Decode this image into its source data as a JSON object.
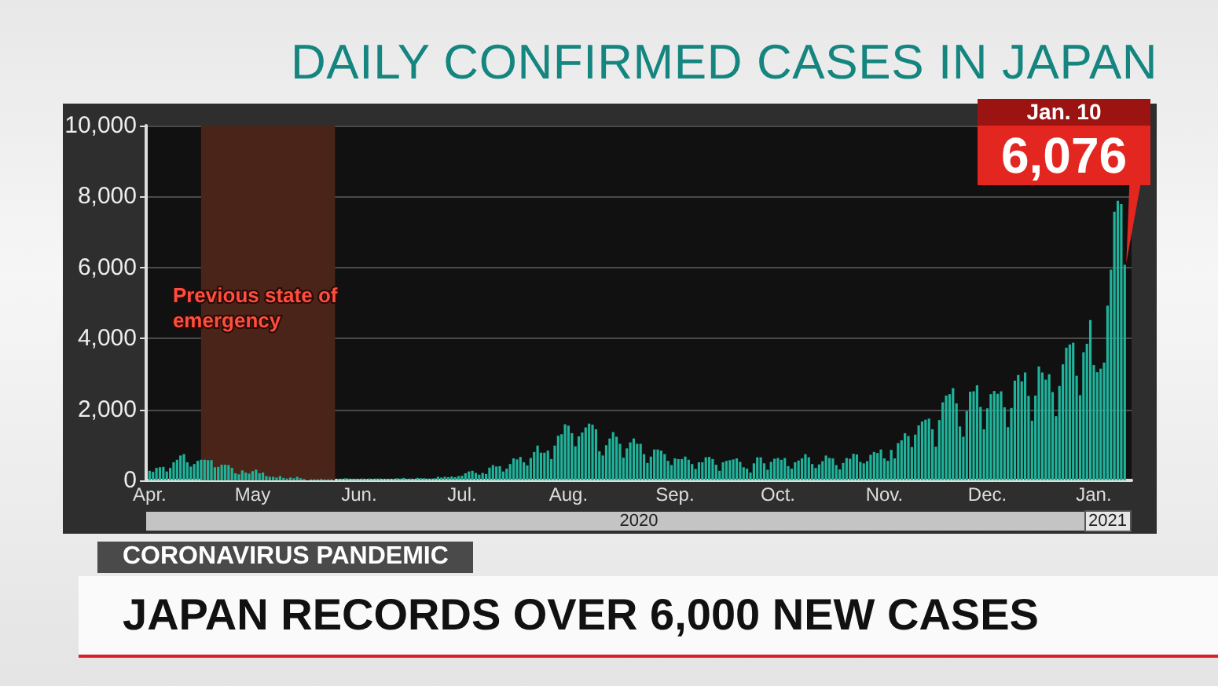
{
  "chart_data": {
    "type": "bar",
    "title": "DAILY CONFIRMED CASES IN JAPAN",
    "subtitle": "CORONAVIRUS PANDEMIC",
    "annotations": [
      "JAPAN RECORDS OVER 6,000 NEW CASES",
      "2020",
      "2021",
      "Jan. 10",
      {
        "text": "6,076",
        "x": "2021-01-10",
        "y": 6076
      }
    ],
    "x": [
      "2020-04-01",
      "2020-04-02",
      "2020-04-03",
      "2020-04-04",
      "2020-04-05",
      "2020-04-06",
      "2020-04-07",
      "2020-04-08",
      "2020-04-09",
      "2020-04-10",
      "2020-04-11",
      "2020-04-12",
      "2020-04-13",
      "2020-04-14",
      "2020-04-15",
      "2020-04-16",
      "2020-04-17",
      "2020-04-18",
      "2020-04-19",
      "2020-04-20",
      "2020-04-21",
      "2020-04-22",
      "2020-04-23",
      "2020-04-24",
      "2020-04-25",
      "2020-04-26",
      "2020-04-27",
      "2020-04-28",
      "2020-04-29",
      "2020-04-30",
      "2020-05-01",
      "2020-05-02",
      "2020-05-03",
      "2020-05-04",
      "2020-05-05",
      "2020-05-06",
      "2020-05-07",
      "2020-05-08",
      "2020-05-09",
      "2020-05-10",
      "2020-05-11",
      "2020-05-12",
      "2020-05-13",
      "2020-05-14",
      "2020-05-15",
      "2020-05-16",
      "2020-05-17",
      "2020-05-18",
      "2020-05-19",
      "2020-05-20",
      "2020-05-21",
      "2020-05-22",
      "2020-05-23",
      "2020-05-24",
      "2020-05-25",
      "2020-05-26",
      "2020-05-27",
      "2020-05-28",
      "2020-05-29",
      "2020-05-30",
      "2020-05-31",
      "2020-06-01",
      "2020-06-02",
      "2020-06-03",
      "2020-06-04",
      "2020-06-05",
      "2020-06-06",
      "2020-06-07",
      "2020-06-08",
      "2020-06-09",
      "2020-06-10",
      "2020-06-11",
      "2020-06-12",
      "2020-06-13",
      "2020-06-14",
      "2020-06-15",
      "2020-06-16",
      "2020-06-17",
      "2020-06-18",
      "2020-06-19",
      "2020-06-20",
      "2020-06-21",
      "2020-06-22",
      "2020-06-23",
      "2020-06-24",
      "2020-06-25",
      "2020-06-26",
      "2020-06-27",
      "2020-06-28",
      "2020-06-29",
      "2020-06-30",
      "2020-07-01",
      "2020-07-02",
      "2020-07-03",
      "2020-07-04",
      "2020-07-05",
      "2020-07-06",
      "2020-07-07",
      "2020-07-08",
      "2020-07-09",
      "2020-07-10",
      "2020-07-11",
      "2020-07-12",
      "2020-07-13",
      "2020-07-14",
      "2020-07-15",
      "2020-07-16",
      "2020-07-17",
      "2020-07-18",
      "2020-07-19",
      "2020-07-20",
      "2020-07-21",
      "2020-07-22",
      "2020-07-23",
      "2020-07-24",
      "2020-07-25",
      "2020-07-26",
      "2020-07-27",
      "2020-07-28",
      "2020-07-29",
      "2020-07-30",
      "2020-07-31",
      "2020-08-01",
      "2020-08-02",
      "2020-08-03",
      "2020-08-04",
      "2020-08-05",
      "2020-08-06",
      "2020-08-07",
      "2020-08-08",
      "2020-08-09",
      "2020-08-10",
      "2020-08-11",
      "2020-08-12",
      "2020-08-13",
      "2020-08-14",
      "2020-08-15",
      "2020-08-16",
      "2020-08-17",
      "2020-08-18",
      "2020-08-19",
      "2020-08-20",
      "2020-08-21",
      "2020-08-22",
      "2020-08-23",
      "2020-08-24",
      "2020-08-25",
      "2020-08-26",
      "2020-08-27",
      "2020-08-28",
      "2020-08-29",
      "2020-08-30",
      "2020-08-31",
      "2020-09-01",
      "2020-09-02",
      "2020-09-03",
      "2020-09-04",
      "2020-09-05",
      "2020-09-06",
      "2020-09-07",
      "2020-09-08",
      "2020-09-09",
      "2020-09-10",
      "2020-09-11",
      "2020-09-12",
      "2020-09-13",
      "2020-09-14",
      "2020-09-15",
      "2020-09-16",
      "2020-09-17",
      "2020-09-18",
      "2020-09-19",
      "2020-09-20",
      "2020-09-21",
      "2020-09-22",
      "2020-09-23",
      "2020-09-24",
      "2020-09-25",
      "2020-09-26",
      "2020-09-27",
      "2020-09-28",
      "2020-09-29",
      "2020-09-30",
      "2020-10-01",
      "2020-10-02",
      "2020-10-03",
      "2020-10-04",
      "2020-10-05",
      "2020-10-06",
      "2020-10-07",
      "2020-10-08",
      "2020-10-09",
      "2020-10-10",
      "2020-10-11",
      "2020-10-12",
      "2020-10-13",
      "2020-10-14",
      "2020-10-15",
      "2020-10-16",
      "2020-10-17",
      "2020-10-18",
      "2020-10-19",
      "2020-10-20",
      "2020-10-21",
      "2020-10-22",
      "2020-10-23",
      "2020-10-24",
      "2020-10-25",
      "2020-10-26",
      "2020-10-27",
      "2020-10-28",
      "2020-10-29",
      "2020-10-30",
      "2020-10-31",
      "2020-11-01",
      "2020-11-02",
      "2020-11-03",
      "2020-11-04",
      "2020-11-05",
      "2020-11-06",
      "2020-11-07",
      "2020-11-08",
      "2020-11-09",
      "2020-11-10",
      "2020-11-11",
      "2020-11-12",
      "2020-11-13",
      "2020-11-14",
      "2020-11-15",
      "2020-11-16",
      "2020-11-17",
      "2020-11-18",
      "2020-11-19",
      "2020-11-20",
      "2020-11-21",
      "2020-11-22",
      "2020-11-23",
      "2020-11-24",
      "2020-11-25",
      "2020-11-26",
      "2020-11-27",
      "2020-11-28",
      "2020-11-29",
      "2020-11-30",
      "2020-12-01",
      "2020-12-02",
      "2020-12-03",
      "2020-12-04",
      "2020-12-05",
      "2020-12-06",
      "2020-12-07",
      "2020-12-08",
      "2020-12-09",
      "2020-12-10",
      "2020-12-11",
      "2020-12-12",
      "2020-12-13",
      "2020-12-14",
      "2020-12-15",
      "2020-12-16",
      "2020-12-17",
      "2020-12-18",
      "2020-12-19",
      "2020-12-20",
      "2020-12-21",
      "2020-12-22",
      "2020-12-23",
      "2020-12-24",
      "2020-12-25",
      "2020-12-26",
      "2020-12-27",
      "2020-12-28",
      "2020-12-29",
      "2020-12-30",
      "2020-12-31",
      "2021-01-01",
      "2021-01-02",
      "2021-01-03",
      "2021-01-04",
      "2021-01-05",
      "2021-01-06",
      "2021-01-07",
      "2021-01-08",
      "2021-01-09",
      "2021-01-10"
    ],
    "values": [
      270,
      240,
      350,
      370,
      380,
      250,
      350,
      510,
      580,
      700,
      740,
      510,
      390,
      460,
      550,
      580,
      580,
      570,
      570,
      370,
      380,
      440,
      440,
      430,
      350,
      200,
      170,
      280,
      220,
      190,
      260,
      300,
      200,
      220,
      120,
      100,
      100,
      80,
      120,
      70,
      50,
      80,
      60,
      100,
      60,
      40,
      null,
      30,
      30,
      30,
      40,
      30,
      30,
      30,
      null,
      40,
      40,
      60,
      50,
      40,
      40,
      40,
      50,
      40,
      50,
      40,
      50,
      50,
      40,
      40,
      40,
      40,
      60,
      50,
      70,
      40,
      50,
      40,
      70,
      60,
      60,
      50,
      50,
      60,
      100,
      80,
      100,
      90,
      110,
      90,
      120,
      130,
      200,
      250,
      270,
      210,
      160,
      210,
      180,
      360,
      430,
      390,
      400,
      250,
      330,
      460,
      620,
      590,
      660,
      510,
      420,
      630,
      800,
      980,
      780,
      780,
      840,
      600,
      980,
      1260,
      1300,
      1580,
      1540,
      1330,
      960,
      1240,
      1350,
      1490,
      1600,
      1570,
      1440,
      820,
      700,
      990,
      1180,
      1360,
      1230,
      1030,
      640,
      900,
      1070,
      1180,
      1030,
      1030,
      740,
      490,
      670,
      870,
      870,
      840,
      740,
      550,
      430,
      620,
      600,
      600,
      670,
      580,
      460,
      320,
      510,
      510,
      650,
      660,
      600,
      440,
      270,
      510,
      550,
      570,
      590,
      620,
      520,
      370,
      330,
      220,
      480,
      650,
      650,
      480,
      300,
      520,
      610,
      630,
      580,
      630,
      400,
      330,
      510,
      560,
      620,
      740,
      650,
      460,
      350,
      450,
      540,
      700,
      630,
      620,
      430,
      310,
      490,
      630,
      610,
      750,
      730,
      520,
      480,
      540,
      720,
      800,
      770,
      870,
      620,
      550,
      860,
      620,
      1050,
      1130,
      1330,
      1250,
      940,
      1290,
      1550,
      1660,
      1710,
      1740,
      1440,
      950,
      1700,
      2200,
      2390,
      2430,
      2600,
      2170,
      1520,
      1230,
      1950,
      2500,
      2510,
      2680,
      2070,
      1440,
      2030,
      2430,
      2520,
      2440,
      2510,
      2060,
      1500,
      2040,
      2810,
      2970,
      2790,
      3040,
      2380,
      1680,
      2390,
      3210,
      3040,
      2840,
      2990,
      2490,
      1810,
      2660,
      3270,
      3740,
      3830,
      3880,
      2950,
      2400,
      3610,
      3850,
      4520,
      3250,
      3050,
      3150,
      3320,
      4920,
      5940,
      7570,
      7880,
      7790,
      6076
    ],
    "color": "#20b39b",
    "xlim": [
      "2020-03-31",
      "2021-01-12"
    ],
    "xticks": [
      {
        "value": "2020-04-01",
        "label": "Apr."
      },
      {
        "value": "2020-05-01",
        "label": "May"
      },
      {
        "value": "2020-06-01",
        "label": "Jun."
      },
      {
        "value": "2020-07-01",
        "label": "Jul."
      },
      {
        "value": "2020-08-01",
        "label": "Aug."
      },
      {
        "value": "2020-09-01",
        "label": "Sep."
      },
      {
        "value": "2020-10-01",
        "label": "Oct."
      },
      {
        "value": "2020-11-01",
        "label": "Nov."
      },
      {
        "value": "2020-12-01",
        "label": "Dec."
      },
      {
        "value": "2021-01-01",
        "label": "Jan."
      }
    ],
    "ylim": [
      0,
      10000
    ],
    "yticks": [
      0,
      {
        "value": 2000,
        "label": "2,000"
      },
      {
        "value": 4000,
        "label": "4,000"
      },
      {
        "value": 6000,
        "label": "6,000"
      },
      {
        "value": 8000,
        "label": "8,000"
      },
      {
        "value": 10000,
        "label": "10,000"
      }
    ],
    "grid": "y",
    "bands": [
      {
        "axis": "x",
        "from": "2020-04-16",
        "to": "2020-05-25",
        "label": "Previous state of emergency",
        "color": "#4a2418"
      }
    ]
  }
}
